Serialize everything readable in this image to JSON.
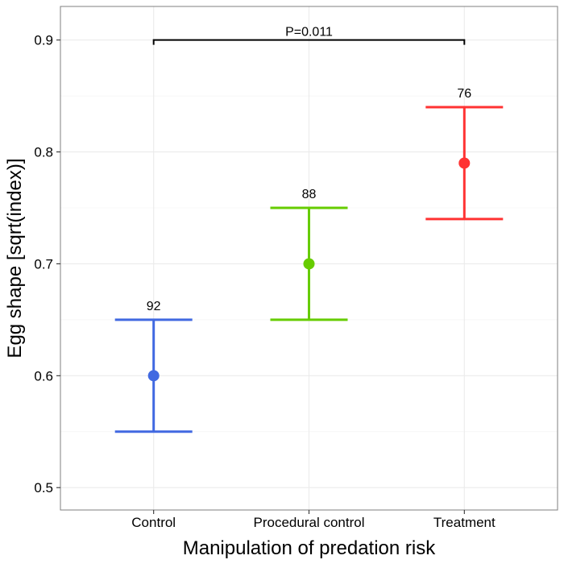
{
  "chart_data": {
    "type": "errorbar",
    "title": "",
    "xlabel": "Manipulation of predation risk",
    "ylabel": "Egg shape [sqrt(index)]",
    "categories": [
      "Control",
      "Procedural control",
      "Treatment"
    ],
    "ylim": [
      0.48,
      0.93
    ],
    "yticks": [
      0.5,
      0.6,
      0.7,
      0.8,
      0.9
    ],
    "ytick_labels": [
      "0.5",
      "0.6",
      "0.7",
      "0.8",
      "0.9"
    ],
    "grid": true,
    "legend": "none",
    "points": [
      {
        "category": "Control",
        "mean": 0.6,
        "lower": 0.55,
        "upper": 0.65,
        "n": "92",
        "color": "#4169E1"
      },
      {
        "category": "Procedural control",
        "mean": 0.7,
        "lower": 0.65,
        "upper": 0.75,
        "n": "88",
        "color": "#66CC00"
      },
      {
        "category": "Treatment",
        "mean": 0.79,
        "lower": 0.74,
        "upper": 0.84,
        "n": "76",
        "color": "#FF3333"
      }
    ],
    "significance": {
      "from": "Control",
      "to": "Treatment",
      "y": 0.9,
      "label": "P=0.011"
    }
  }
}
